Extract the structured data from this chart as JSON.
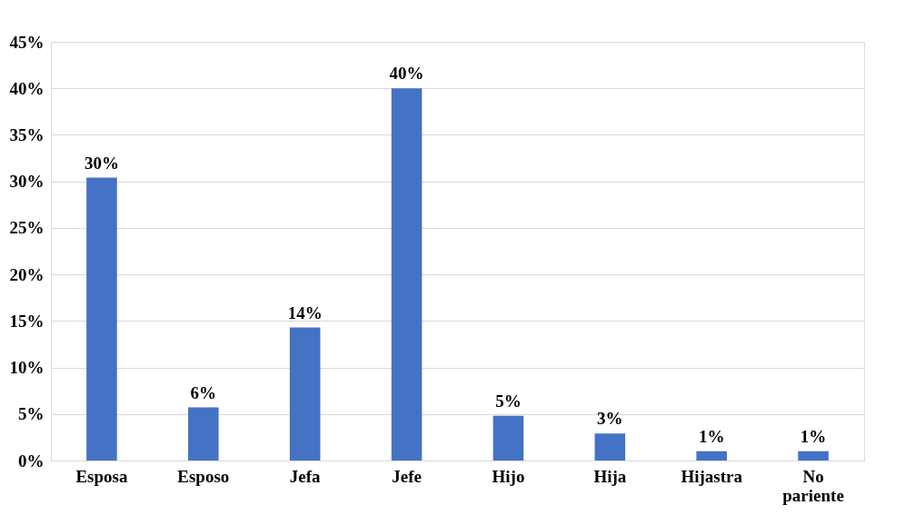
{
  "chart_data": {
    "type": "bar",
    "categories": [
      "Esposa",
      "Esposo",
      "Jefa",
      "Jefe",
      "Hijo",
      "Hija",
      "Hijastra",
      "No pariente"
    ],
    "values": [
      30.4,
      5.7,
      14.3,
      40,
      4.8,
      2.9,
      1,
      1
    ],
    "value_labels": [
      "30%",
      "6%",
      "14%",
      "40%",
      "5%",
      "3%",
      "1%",
      "1%"
    ],
    "color": "#4472c4",
    "ylim": [
      0,
      45
    ],
    "yticks": [
      {
        "value": 0,
        "label": "0%"
      },
      {
        "value": 5,
        "label": "5%"
      },
      {
        "value": 10,
        "label": "10%"
      },
      {
        "value": 15,
        "label": "15%"
      },
      {
        "value": 20,
        "label": "20%"
      },
      {
        "value": 25,
        "label": "25%"
      },
      {
        "value": 30,
        "label": "30%"
      },
      {
        "value": 35,
        "label": "35%"
      },
      {
        "value": 40,
        "label": "40%"
      },
      {
        "value": 45,
        "label": "45%"
      }
    ],
    "grid": "y"
  }
}
